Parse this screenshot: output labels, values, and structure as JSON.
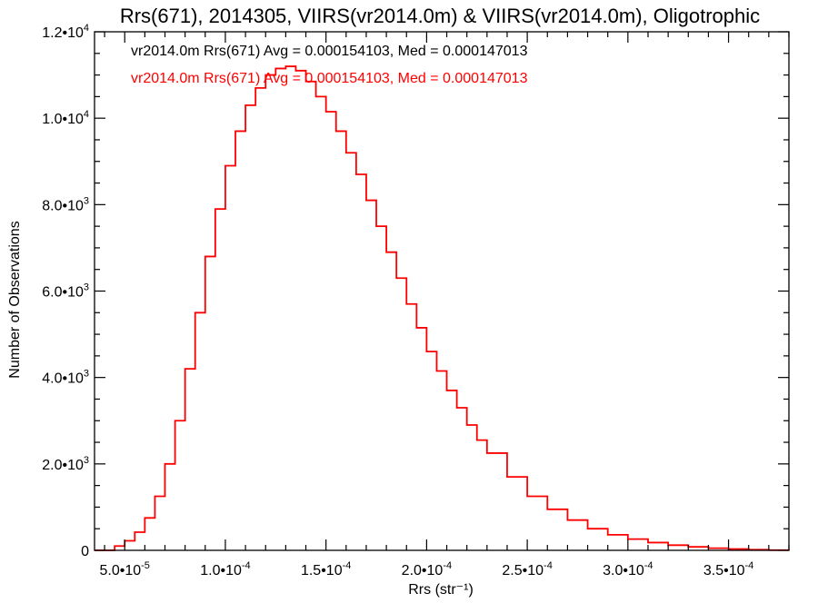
{
  "chart_data": {
    "type": "line",
    "title": "Rrs(671), 2014305, VIIRS(vr2014.0m) & VIIRS(vr2014.0m), Oligotrophic",
    "xlabel": "Rrs (str⁻¹)",
    "ylabel": "Number of Observations",
    "xlim": [
      3.5e-05,
      0.00038
    ],
    "ylim": [
      0,
      12000
    ],
    "grid": false,
    "x_ticks": [
      {
        "value": 5e-05,
        "mantissa": "5.0",
        "exponent": "-5"
      },
      {
        "value": 0.0001,
        "mantissa": "1.0",
        "exponent": "-4"
      },
      {
        "value": 0.00015,
        "mantissa": "1.5",
        "exponent": "-4"
      },
      {
        "value": 0.0002,
        "mantissa": "2.0",
        "exponent": "-4"
      },
      {
        "value": 0.00025,
        "mantissa": "2.5",
        "exponent": "-4"
      },
      {
        "value": 0.0003,
        "mantissa": "3.0",
        "exponent": "-4"
      },
      {
        "value": 0.00035,
        "mantissa": "3.5",
        "exponent": "-4"
      }
    ],
    "y_ticks": [
      {
        "value": 0,
        "mantissa": "0",
        "exponent": ""
      },
      {
        "value": 2000,
        "mantissa": "2.0",
        "exponent": "3"
      },
      {
        "value": 4000,
        "mantissa": "4.0",
        "exponent": "3"
      },
      {
        "value": 6000,
        "mantissa": "6.0",
        "exponent": "3"
      },
      {
        "value": 8000,
        "mantissa": "8.0",
        "exponent": "3"
      },
      {
        "value": 10000,
        "mantissa": "1.0",
        "exponent": "4"
      },
      {
        "value": 12000,
        "mantissa": "1.2",
        "exponent": "4"
      }
    ],
    "annotations": [
      {
        "text": "vr2014.0m Rrs(671) Avg = 0.000154103, Med = 0.000147013",
        "color": "#000000"
      },
      {
        "text": "vr2014.0m Rrs(671) Avg = 0.000154103, Med = 0.000147013",
        "color": "#ff0000"
      }
    ],
    "series": [
      {
        "color": "#ff0000",
        "style": "histogram-step",
        "x": [
          3.5e-05,
          4.5e-05,
          5e-05,
          5.5e-05,
          6e-05,
          6.5e-05,
          7e-05,
          7.5e-05,
          8e-05,
          8.5e-05,
          9e-05,
          9.5e-05,
          0.0001,
          0.000105,
          0.00011,
          0.000115,
          0.00012,
          0.000125,
          0.00013,
          0.000135,
          0.00014,
          0.000145,
          0.00015,
          0.000155,
          0.00016,
          0.000165,
          0.00017,
          0.000175,
          0.00018,
          0.000185,
          0.00019,
          0.000195,
          0.0002,
          0.000205,
          0.00021,
          0.000215,
          0.00022,
          0.000225,
          0.00023,
          0.00024,
          0.00025,
          0.00026,
          0.00027,
          0.00028,
          0.00029,
          0.0003,
          0.00031,
          0.00032,
          0.00033,
          0.00034,
          0.00035,
          0.00036,
          0.00037,
          0.00038
        ],
        "y": [
          0,
          100,
          220,
          420,
          750,
          1250,
          2000,
          3000,
          4200,
          5500,
          6800,
          7900,
          8900,
          9700,
          10300,
          10700,
          11000,
          11150,
          11200,
          11100,
          10850,
          10500,
          10150,
          9700,
          9200,
          8700,
          8100,
          7500,
          6900,
          6300,
          5700,
          5150,
          4600,
          4150,
          3700,
          3300,
          2900,
          2550,
          2250,
          1700,
          1250,
          950,
          700,
          500,
          360,
          260,
          180,
          120,
          80,
          50,
          30,
          15,
          5,
          2
        ]
      }
    ]
  }
}
